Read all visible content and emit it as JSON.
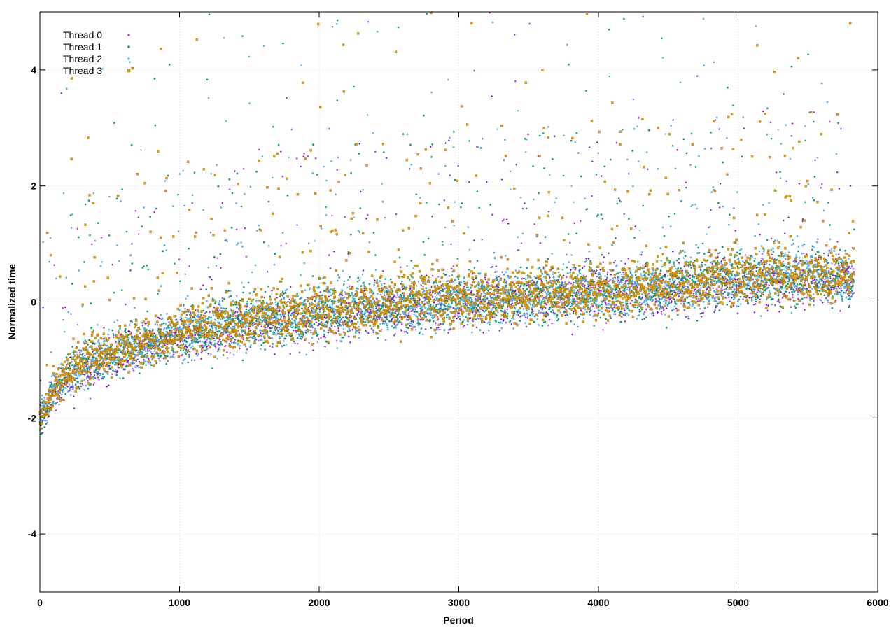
{
  "chart_data": {
    "type": "scatter",
    "title": "",
    "xlabel": "Period",
    "ylabel": "Normalized time",
    "xlim": [
      0,
      6000
    ],
    "ylim": [
      -5,
      5
    ],
    "xticks": [
      0,
      1000,
      2000,
      3000,
      4000,
      5000,
      6000
    ],
    "yticks": [
      -4,
      -2,
      0,
      2,
      4
    ],
    "grid": true,
    "legend_position": "top-left",
    "x_extent": [
      0,
      5830
    ],
    "series": [
      {
        "name": "Thread 0",
        "color": "#9400d3",
        "marker": "plus",
        "trend": [
          [
            0,
            -2.1
          ],
          [
            100,
            -1.55
          ],
          [
            250,
            -1.2
          ],
          [
            500,
            -0.95
          ],
          [
            800,
            -0.75
          ],
          [
            1000,
            -0.6
          ],
          [
            1500,
            -0.35
          ],
          [
            2000,
            -0.25
          ],
          [
            2500,
            -0.1
          ],
          [
            3000,
            0.0
          ],
          [
            3500,
            0.1
          ],
          [
            4000,
            0.15
          ],
          [
            4500,
            0.2
          ],
          [
            5000,
            0.35
          ],
          [
            5830,
            0.4
          ]
        ]
      },
      {
        "name": "Thread 1",
        "color": "#009e73",
        "marker": "dot",
        "trend": [
          [
            0,
            -2.05
          ],
          [
            100,
            -1.5
          ],
          [
            250,
            -1.15
          ],
          [
            500,
            -0.9
          ],
          [
            800,
            -0.7
          ],
          [
            1000,
            -0.55
          ],
          [
            1500,
            -0.35
          ],
          [
            2000,
            -0.2
          ],
          [
            2500,
            -0.05
          ],
          [
            3000,
            0.05
          ],
          [
            3500,
            0.1
          ],
          [
            4000,
            0.15
          ],
          [
            4500,
            0.25
          ],
          [
            5000,
            0.4
          ],
          [
            5830,
            0.45
          ]
        ]
      },
      {
        "name": "Thread 2",
        "color": "#56b4e9",
        "marker": "dot",
        "trend": [
          [
            0,
            -2.0
          ],
          [
            100,
            -1.5
          ],
          [
            250,
            -1.15
          ],
          [
            500,
            -0.9
          ],
          [
            800,
            -0.7
          ],
          [
            1000,
            -0.55
          ],
          [
            1500,
            -0.3
          ],
          [
            2000,
            -0.2
          ],
          [
            2500,
            -0.05
          ],
          [
            3000,
            0.0
          ],
          [
            3500,
            0.1
          ],
          [
            4000,
            0.2
          ],
          [
            4500,
            0.25
          ],
          [
            5000,
            0.45
          ],
          [
            5830,
            0.45
          ]
        ]
      },
      {
        "name": "Thread 3",
        "color": "#e69f00",
        "marker": "square",
        "trend": [
          [
            0,
            -2.0
          ],
          [
            100,
            -1.5
          ],
          [
            250,
            -1.1
          ],
          [
            500,
            -0.85
          ],
          [
            800,
            -0.65
          ],
          [
            1000,
            -0.5
          ],
          [
            1500,
            -0.3
          ],
          [
            2000,
            -0.15
          ],
          [
            2500,
            0.0
          ],
          [
            3000,
            0.05
          ],
          [
            3500,
            0.15
          ],
          [
            4000,
            0.2
          ],
          [
            4500,
            0.3
          ],
          [
            5000,
            0.45
          ],
          [
            5830,
            0.5
          ]
        ]
      }
    ]
  }
}
